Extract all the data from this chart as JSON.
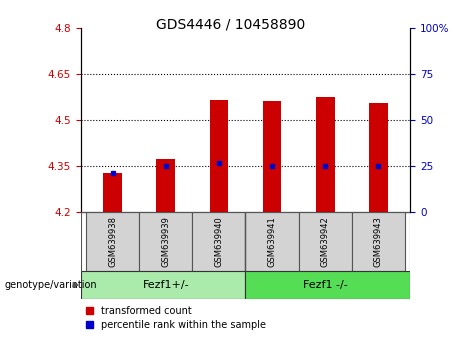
{
  "title": "GDS4446 / 10458890",
  "categories": [
    "GSM639938",
    "GSM639939",
    "GSM639940",
    "GSM639941",
    "GSM639942",
    "GSM639943"
  ],
  "bar_tops": [
    4.328,
    4.375,
    4.565,
    4.562,
    4.575,
    4.555
  ],
  "bar_bottom": 4.2,
  "percentile_values": [
    4.33,
    4.35,
    4.362,
    4.352,
    4.352,
    4.352
  ],
  "ylim_left": [
    4.2,
    4.8
  ],
  "ylim_right": [
    0,
    100
  ],
  "yticks_left": [
    4.2,
    4.35,
    4.5,
    4.65,
    4.8
  ],
  "ytick_labels_left": [
    "4.2",
    "4.35",
    "4.5",
    "4.65",
    "4.8"
  ],
  "yticks_right": [
    0,
    25,
    50,
    75,
    100
  ],
  "ytick_labels_right": [
    "0",
    "25",
    "50",
    "75",
    "100%"
  ],
  "hlines": [
    4.35,
    4.5,
    4.65
  ],
  "bar_color": "#cc0000",
  "marker_color": "#0000cc",
  "group1_label": "Fezf1+/-",
  "group2_label": "Fezf1 -/-",
  "group1_color": "#aaeaaa",
  "group2_color": "#55dd55",
  "genotype_label": "genotype/variation",
  "legend_red": "transformed count",
  "legend_blue": "percentile rank within the sample",
  "plot_bg": "#ffffff",
  "box_bg": "#d3d3d3"
}
